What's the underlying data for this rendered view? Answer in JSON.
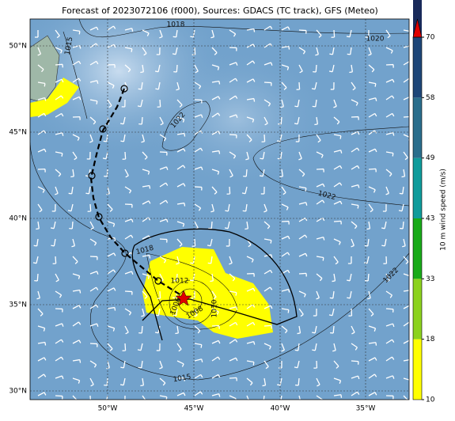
{
  "title": "Forecast of 2023072106 (f000), Sources: GDACS (TC track), GFS (Meteo)",
  "axes": {
    "lon_labels": [
      "50°W",
      "45°W",
      "40°W",
      "35°W"
    ],
    "lat_labels": [
      "50°N",
      "45°N",
      "40°N",
      "35°N",
      "30°N"
    ]
  },
  "colorbar": {
    "label": "10 m wind speed (m/s)",
    "ticks": [
      10,
      18,
      33,
      43,
      49,
      58,
      70
    ],
    "colors": [
      "#ffff00",
      "#8cd21e",
      "#19aa19",
      "#0f9b9b",
      "#2a6e8c",
      "#1e4678",
      "#192a5a"
    ],
    "arrow_color": "#e00000"
  },
  "contour_labels": [
    "1018",
    "1020",
    "1015",
    "1022",
    "1022",
    "1018",
    "1012",
    "1022",
    "1006",
    "1008",
    "1010",
    "1015"
  ]
}
